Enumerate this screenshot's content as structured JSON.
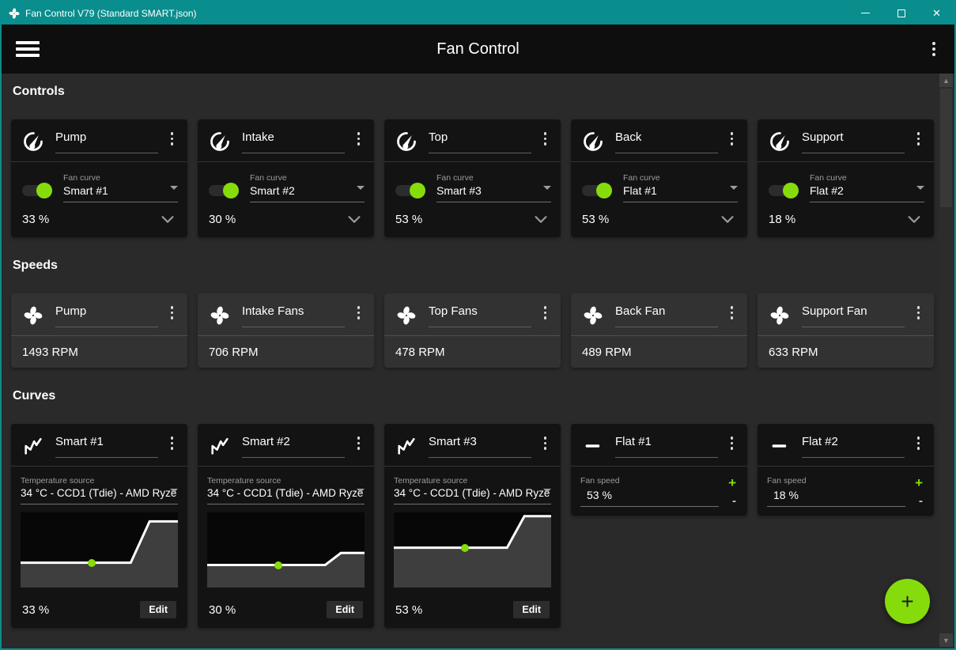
{
  "titlebar": {
    "title": "Fan Control V79 (Standard SMART.json)",
    "close_glyph": "✕"
  },
  "appbar": {
    "title": "Fan Control"
  },
  "sections": {
    "controls": "Controls",
    "speeds": "Speeds",
    "curves": "Curves"
  },
  "labels": {
    "fan_curve": "Fan curve",
    "temperature_source": "Temperature source",
    "fan_speed": "Fan speed",
    "edit": "Edit",
    "plus": "+",
    "minus": "-"
  },
  "controls": [
    {
      "name": "Pump",
      "fan_curve": "Smart #1",
      "percent": "33 %"
    },
    {
      "name": "Intake",
      "fan_curve": "Smart #2",
      "percent": "30 %"
    },
    {
      "name": "Top",
      "fan_curve": "Smart #3",
      "percent": "53 %"
    },
    {
      "name": "Back",
      "fan_curve": "Flat #1",
      "percent": "53 %"
    },
    {
      "name": "Support",
      "fan_curve": "Flat #2",
      "percent": "18 %"
    }
  ],
  "speeds": [
    {
      "name": "Pump",
      "rpm": "1493 RPM"
    },
    {
      "name": "Intake Fans",
      "rpm": "706 RPM"
    },
    {
      "name": "Top Fans",
      "rpm": "478 RPM"
    },
    {
      "name": "Back Fan",
      "rpm": "489 RPM"
    },
    {
      "name": "Support Fan",
      "rpm": "633 RPM"
    }
  ],
  "smart_curves": [
    {
      "name": "Smart #1",
      "temperature_source": "34 °C - CCD1 (Tdie) - AMD Ryze",
      "percent": "33 %",
      "graph": {
        "points": [
          [
            0,
            33
          ],
          [
            70,
            33
          ],
          [
            82,
            88
          ],
          [
            100,
            88
          ]
        ],
        "dot": [
          45,
          33
        ]
      }
    },
    {
      "name": "Smart #2",
      "temperature_source": "34 °C - CCD1 (Tdie) - AMD Ryze",
      "percent": "30 %",
      "graph": {
        "points": [
          [
            0,
            30
          ],
          [
            75,
            30
          ],
          [
            85,
            46
          ],
          [
            100,
            46
          ]
        ],
        "dot": [
          45,
          30
        ]
      }
    },
    {
      "name": "Smart #3",
      "temperature_source": "34 °C - CCD1 (Tdie) - AMD Ryze",
      "percent": "53 %",
      "graph": {
        "points": [
          [
            0,
            53
          ],
          [
            72,
            53
          ],
          [
            83,
            95
          ],
          [
            100,
            95
          ]
        ],
        "dot": [
          45,
          53
        ]
      }
    }
  ],
  "flat_curves": [
    {
      "name": "Flat #1",
      "fan_speed": "53 %"
    },
    {
      "name": "Flat #2",
      "fan_speed": "18 %"
    }
  ],
  "fab": {
    "label": "+"
  },
  "scrollbar": {
    "up": "▲",
    "down": "▼"
  },
  "colors": {
    "accent": "#86DC0B",
    "titlebar": "#0A8D8D",
    "graph_fill": "#3E3E3E",
    "graph_line": "#FFFFFF"
  }
}
